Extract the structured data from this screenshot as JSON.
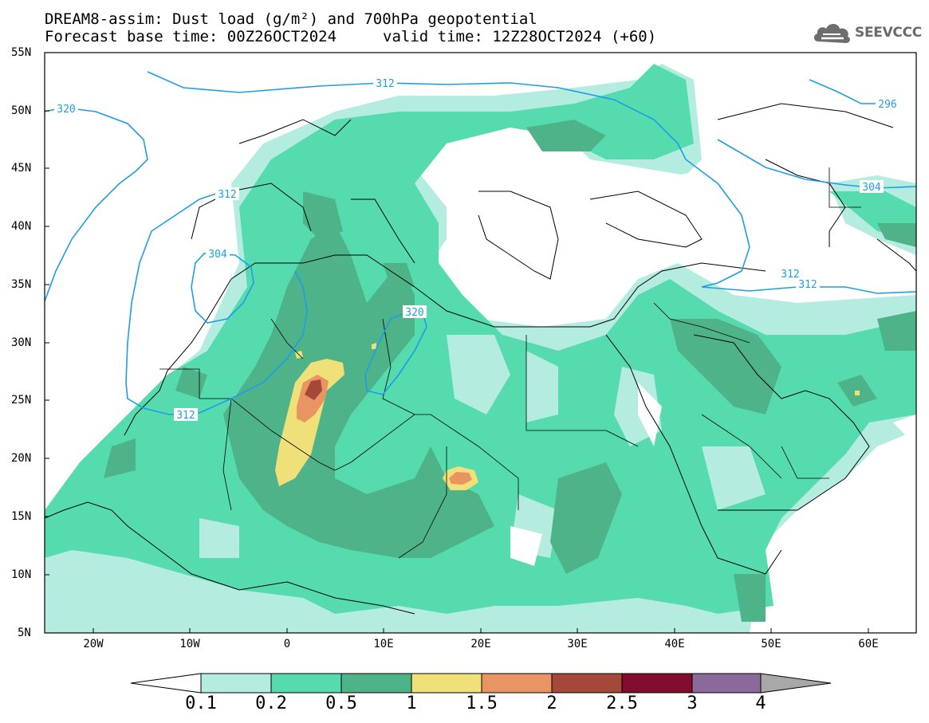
{
  "title": {
    "line1": "DREAM8-assim: Dust load (g/m²) and 700hPa geopotential",
    "line2_left": "Forecast base time: 00Z26OCT2024",
    "line2_right": "valid time: 12Z28OCT2024 (+60)"
  },
  "logo": {
    "text": "SEEVCCC",
    "icon": "cloud-icon"
  },
  "axes": {
    "lat_labels": [
      "55N",
      "50N",
      "45N",
      "40N",
      "35N",
      "30N",
      "25N",
      "20N",
      "15N",
      "10N",
      "5N"
    ],
    "lon_labels": [
      "20W",
      "10W",
      "0",
      "10E",
      "20E",
      "30E",
      "40E",
      "50E",
      "60E"
    ],
    "lat_range": [
      5,
      55
    ],
    "lon_range": [
      -25,
      65
    ]
  },
  "contours": {
    "labels": [
      "320",
      "312",
      "312",
      "304",
      "312",
      "320",
      "312",
      "312",
      "296",
      "304"
    ]
  },
  "colorbar": {
    "labels": [
      "0.1",
      "0.2",
      "0.5",
      "1",
      "1.5",
      "2",
      "2.5",
      "3",
      "4"
    ],
    "colors": [
      "#b4ecdf",
      "#55dbae",
      "#4fb38a",
      "#f0e079",
      "#e89463",
      "#a4483a",
      "#820c2d",
      "#8a6a9a",
      "#a8a8a8"
    ]
  }
}
